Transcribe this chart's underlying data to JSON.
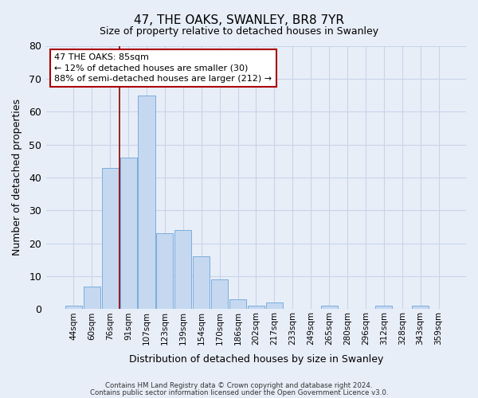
{
  "title": "47, THE OAKS, SWANLEY, BR8 7YR",
  "subtitle": "Size of property relative to detached houses in Swanley",
  "xlabel": "Distribution of detached houses by size in Swanley",
  "ylabel": "Number of detached properties",
  "bar_labels": [
    "44sqm",
    "60sqm",
    "76sqm",
    "91sqm",
    "107sqm",
    "123sqm",
    "139sqm",
    "154sqm",
    "170sqm",
    "186sqm",
    "202sqm",
    "217sqm",
    "233sqm",
    "249sqm",
    "265sqm",
    "280sqm",
    "296sqm",
    "312sqm",
    "328sqm",
    "343sqm",
    "359sqm"
  ],
  "bar_values": [
    1,
    7,
    43,
    46,
    65,
    23,
    24,
    16,
    9,
    3,
    1,
    2,
    0,
    0,
    1,
    0,
    0,
    1,
    0,
    1,
    0
  ],
  "bar_color": "#c5d8f0",
  "bar_edgecolor": "#7aaddd",
  "ylim": [
    0,
    80
  ],
  "yticks": [
    0,
    10,
    20,
    30,
    40,
    50,
    60,
    70,
    80
  ],
  "vline_color": "#8b0000",
  "annotation_title": "47 THE OAKS: 85sqm",
  "annotation_line1": "← 12% of detached houses are smaller (30)",
  "annotation_line2": "88% of semi-detached houses are larger (212) →",
  "annotation_box_edgecolor": "#aa0000",
  "footer_line1": "Contains HM Land Registry data © Crown copyright and database right 2024.",
  "footer_line2": "Contains public sector information licensed under the Open Government Licence v3.0.",
  "bg_color": "#e8eef8",
  "plot_bg_color": "#e8eef8",
  "grid_color": "#c8d4e8"
}
